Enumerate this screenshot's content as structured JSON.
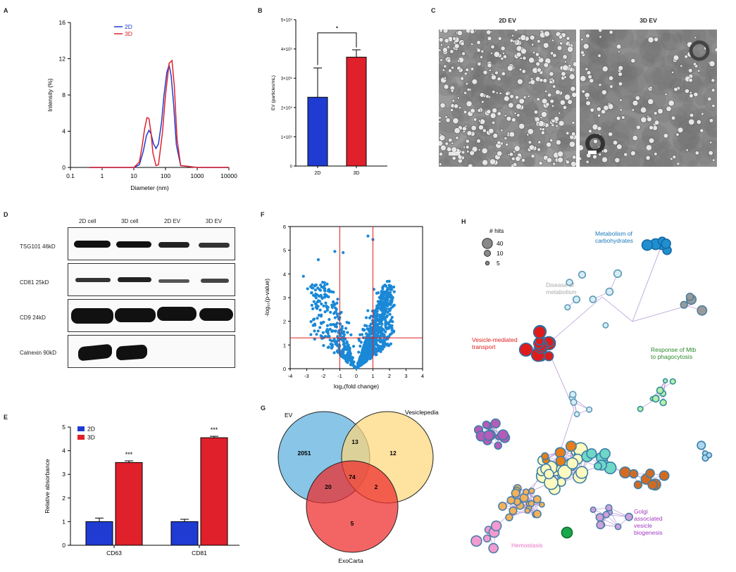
{
  "panels": {
    "A": {
      "letter": "A",
      "chart_data": {
        "type": "line",
        "xscale": "log",
        "xlabel": "Diameter (nm)",
        "ylabel": "Intensity (%)",
        "xlim": [
          0.1,
          10000
        ],
        "ylim": [
          0,
          16
        ],
        "xticks": [
          "0.1",
          "1",
          "10",
          "100",
          "1000",
          "10000"
        ],
        "yticks": [
          "0",
          "4",
          "8",
          "12",
          "16"
        ],
        "legend": [
          "2D",
          "3D"
        ],
        "series": [
          {
            "name": "2D",
            "color": "#1f3bd1",
            "x": [
              0.4,
              10,
              15,
              20,
              25,
              30,
              35,
              42,
              50,
              60,
              75,
              90,
              110,
              130,
              150,
              180,
              220,
              300,
              1000,
              10000
            ],
            "y": [
              0,
              0,
              0.3,
              1.8,
              3.5,
              4.1,
              3.7,
              2.6,
              2.1,
              2.6,
              5.0,
              8.0,
              10.5,
              11.3,
              10.2,
              7.0,
              2.5,
              0.2,
              0,
              0
            ]
          },
          {
            "name": "3D",
            "color": "#e0202a",
            "x": [
              0.4,
              10,
              15,
              18,
              22,
              26,
              30,
              35,
              40,
              50,
              60,
              80,
              100,
              130,
              160,
              190,
              230,
              300,
              1000,
              10000
            ],
            "y": [
              0,
              0,
              0.6,
              2.2,
              4.3,
              5.5,
              5.4,
              3.8,
              1.6,
              0.2,
              0.3,
              3.8,
              8.0,
              11.5,
              11.8,
              9.0,
              3.2,
              0.2,
              0,
              0
            ]
          }
        ]
      }
    },
    "B": {
      "letter": "B",
      "chart_data": {
        "type": "bar",
        "categories": [
          "2D",
          "3D"
        ],
        "values": [
          2.35,
          3.72
        ],
        "errors": [
          1.0,
          0.25
        ],
        "colors": [
          "#1f3bd1",
          "#e0202a"
        ],
        "ylabel": "EV (particles/mL)",
        "ylim": [
          0,
          5
        ],
        "yticks": [
          "0",
          "1×10⁹",
          "2×10⁹",
          "3×10⁹",
          "4×10⁹",
          "5×10⁹"
        ],
        "significance": "*"
      }
    },
    "C": {
      "letter": "C",
      "titles": [
        "2D EV",
        "3D EV"
      ]
    },
    "D": {
      "letter": "D",
      "columns": [
        "2D cell",
        "3D cell",
        "2D EV",
        "3D EV"
      ],
      "rows": [
        "TSG101 46kD",
        "CD81 25kD",
        "CD9 24kD",
        "Calnexin 90kD"
      ]
    },
    "E": {
      "letter": "E",
      "chart_data": {
        "type": "bar",
        "categories": [
          "CD63",
          "CD81"
        ],
        "series": [
          {
            "name": "2D",
            "color": "#1f3bd1",
            "values": [
              1.0,
              1.0
            ],
            "errors": [
              0.15,
              0.1
            ]
          },
          {
            "name": "3D",
            "color": "#e0202a",
            "values": [
              3.5,
              4.55
            ],
            "errors": [
              0.07,
              0.06
            ]
          }
        ],
        "ylabel": "Relative absorbance",
        "ylim": [
          0,
          5
        ],
        "yticks": [
          "0",
          "1",
          "2",
          "3",
          "4",
          "5"
        ],
        "significance": [
          "***",
          "***"
        ]
      }
    },
    "F": {
      "letter": "F",
      "chart_data": {
        "type": "scatter",
        "xlabel": "log₂(fold change)",
        "ylabel": "-log₁₀(p-value)",
        "xlim": [
          -4,
          4
        ],
        "ylim": [
          0,
          6
        ],
        "xticks": [
          "-4",
          "-3",
          "-2",
          "-1",
          "0",
          "1",
          "2",
          "3",
          "4"
        ],
        "yticks": [
          "0",
          "1",
          "2",
          "3",
          "4",
          "5",
          "6"
        ],
        "vlines": [
          -1,
          1
        ],
        "hline": 1.3,
        "color": "#1a88d6"
      }
    },
    "G": {
      "letter": "G",
      "chart_data": {
        "type": "venn",
        "sets": [
          {
            "name": "EV",
            "color": "#5aaedc"
          },
          {
            "name": "Vesiclepedia",
            "color": "#fcd77c"
          },
          {
            "name": "ExoCarta",
            "color": "#ee2a2a"
          }
        ],
        "counts": {
          "EV_only": "2051",
          "Vesiclepedia_only": "12",
          "ExoCarta_only": "5",
          "EV_Vesiclepedia": "13",
          "EV_ExoCarta": "20",
          "Vesiclepedia_ExoCarta": "2",
          "all": "74"
        }
      }
    },
    "H": {
      "letter": "H",
      "legend_title": "# hits",
      "legend_sizes": [
        "40",
        "10",
        "5"
      ],
      "clusters": [
        {
          "label": "Metabolism of carbohydrates",
          "color": "#1b78b8"
        },
        {
          "label": "Disease of metabolism",
          "color": "#aaaaaa"
        },
        {
          "label": "Vesicle-mediated transport",
          "color": "#e01d1d"
        },
        {
          "label": "Response of Mtb to phagocytosis",
          "color": "#2a8a2a"
        },
        {
          "label": "Golgi associated vesicle biogenesis",
          "color": "#a33bbf"
        },
        {
          "label": "Hemostasis",
          "color": "#e871c5"
        }
      ]
    }
  }
}
